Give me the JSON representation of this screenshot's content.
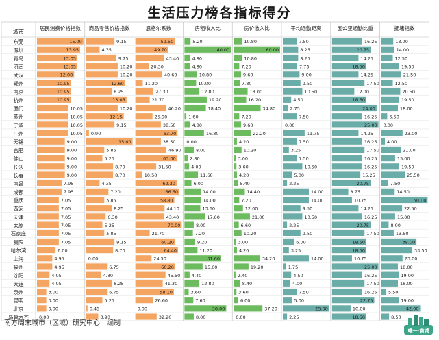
{
  "page": {
    "title": "生活压力榜各指标得分",
    "source": "南方周末城市（区域）研究中心　编制",
    "logo_text": "唯一·南城"
  },
  "chart_data": {
    "type": "table",
    "title": "生活压力榜各指标得分",
    "row_header": "城市",
    "columns": [
      {
        "name": "居民消费价格指数",
        "color": "#f4a561",
        "max": 15
      },
      {
        "name": "商品零售价格指数",
        "color": "#f4a561",
        "max": 15
      },
      {
        "name": "恩格尔系数",
        "color": "#f4a561",
        "max": 70
      },
      {
        "name": "房租收入比",
        "color": "#6cbb5e",
        "max": 40
      },
      {
        "name": "房价收入比",
        "color": "#6cbb5e",
        "max": 60
      },
      {
        "name": "平均通勤距离",
        "color": "#6aada8",
        "max": 25
      },
      {
        "name": "五公里通勤比重",
        "color": "#6aada8",
        "max": 25
      },
      {
        "name": "拥堵指数",
        "color": "#6aada8",
        "max": 50
      }
    ],
    "rows": [
      {
        "city": "东莞",
        "values": [
          "15.00",
          "9.15",
          "59.50",
          "5.20",
          "10.80",
          "7.50",
          "16.25",
          "13.00"
        ]
      },
      {
        "city": "深圳",
        "values": [
          "13.95",
          "4.35",
          "49.70",
          "40.00",
          "60.00",
          "8.25",
          "20.75",
          "14.00"
        ]
      },
      {
        "city": "青岛",
        "values": [
          "13.05",
          "9.75",
          "43.40",
          "4.80",
          "10.80",
          "8.25",
          "14.25",
          "12.50"
        ]
      },
      {
        "city": "济南",
        "values": [
          "13.05",
          "10.20",
          "20.30",
          "4.80",
          "7.20",
          "7.75",
          "18.50",
          "19.50"
        ]
      },
      {
        "city": "武汉",
        "values": [
          "12.00",
          "10.20",
          "40.60",
          "10.80",
          "9.60",
          "9.00",
          "14.25",
          "21.50"
        ]
      },
      {
        "city": "郑州",
        "values": [
          "10.95",
          "12.60",
          "11.20",
          "10.00",
          "7.80",
          "9.50",
          "17.50",
          "12.50"
        ]
      },
      {
        "city": "南京",
        "values": [
          "10.95",
          "8.25",
          "27.30",
          "12.80",
          "18.00",
          "10.50",
          "12.00",
          "20.50"
        ]
      },
      {
        "city": "杭州",
        "values": [
          "10.95",
          "13.05",
          "21.70",
          "19.20",
          "16.20",
          "4.50",
          "18.50",
          "19.50"
        ]
      },
      {
        "city": "厦门",
        "values": [
          "10.05",
          "10.20",
          "46.20",
          "18.40",
          "34.80",
          "2.75",
          "24.00",
          "18.00"
        ]
      },
      {
        "city": "苏州",
        "values": [
          "10.05",
          "12.15",
          "25.90",
          "1.60",
          "7.20",
          "7.50",
          "16.25",
          "6.50"
        ]
      },
      {
        "city": "宁波",
        "values": [
          "10.05",
          "9.15",
          "38.50",
          "4.80",
          "9.60",
          "0.00",
          "25.00",
          "0.00"
        ]
      },
      {
        "city": "广州",
        "values": [
          "10.05",
          "0.90",
          "63.70",
          "16.80",
          "22.20",
          "11.75",
          "14.25",
          "23.00"
        ]
      },
      {
        "city": "无锡",
        "values": [
          "9.00",
          "15.00",
          "38.50",
          "0.00",
          "4.20",
          "7.50",
          "16.25",
          "4.00"
        ]
      },
      {
        "city": "合肥",
        "values": [
          "9.00",
          "5.85",
          "46.90",
          "8.00",
          "10.20",
          "3.25",
          "17.50",
          "21.00"
        ]
      },
      {
        "city": "佛山",
        "values": [
          "9.00",
          "5.25",
          "63.00",
          "2.80",
          "3.00",
          "7.50",
          "16.25",
          "15.00"
        ]
      },
      {
        "city": "长沙",
        "values": [
          "9.00",
          "8.70",
          "31.50",
          "4.00",
          "3.60",
          "10.50",
          "16.25",
          "19.50"
        ]
      },
      {
        "city": "长春",
        "values": [
          "9.00",
          "8.70",
          "10.50",
          "11.60",
          "4.20",
          "5.00",
          "15.25",
          "25.50"
        ]
      },
      {
        "city": "南昌",
        "values": [
          "7.95",
          "4.35",
          "62.30",
          "6.00",
          "5.40",
          "2.25",
          "20.75",
          "7.50"
        ]
      },
      {
        "city": "成都",
        "values": [
          "7.95",
          "7.20",
          "66.50",
          "14.00",
          "14.40",
          "14.00",
          "8.75",
          "14.50"
        ]
      },
      {
        "city": "重庆",
        "values": [
          "7.05",
          "5.85",
          "58.80",
          "14.00",
          "7.20",
          "14.00",
          "10.75",
          "50.00"
        ]
      },
      {
        "city": "西安",
        "values": [
          "7.05",
          "8.25",
          "44.10",
          "13.60",
          "12.00",
          "9.50",
          "14.25",
          "22.50"
        ]
      },
      {
        "city": "天津",
        "values": [
          "7.05",
          "6.30",
          "43.40",
          "17.60",
          "21.00",
          "10.50",
          "16.25",
          "15.00"
        ]
      },
      {
        "city": "太原",
        "values": [
          "7.05",
          "5.25",
          "70.00",
          "8.00",
          "6.60",
          "2.25",
          "20.75",
          "8.00"
        ]
      },
      {
        "city": "石家庄",
        "values": [
          "7.05",
          "5.85",
          "21.70",
          "7.20",
          "10.20",
          "9.50",
          "17.50",
          "13.50"
        ]
      },
      {
        "city": "贵阳",
        "values": [
          "7.05",
          "9.15",
          "60.20",
          "9.20",
          "3.00",
          "6.00",
          "18.50",
          "38.00"
        ]
      },
      {
        "city": "哈尔滨",
        "values": [
          "6.00",
          "8.70",
          "64.40",
          "11.20",
          "4.20",
          "3.25",
          "18.50",
          "33.50"
        ]
      },
      {
        "city": "上海",
        "values": [
          "4.95",
          "0.00",
          "24.50",
          "31.60",
          "34.20",
          "14.00",
          "10.75",
          "23.00"
        ]
      },
      {
        "city": "福州",
        "values": [
          "4.95",
          "6.75",
          "60.20",
          "15.60",
          "19.20",
          "1.75",
          "25.00",
          "18.00"
        ]
      },
      {
        "city": "沈阳",
        "values": [
          "4.05",
          "4.80",
          "45.50",
          "4.40",
          "2.40",
          "4.50",
          "16.25",
          "19.00"
        ]
      },
      {
        "city": "大连",
        "values": [
          "4.05",
          "8.25",
          "41.30",
          "12.80",
          "8.40",
          "4.00",
          "17.50",
          "18.00"
        ]
      },
      {
        "city": "泉州",
        "values": [
          "3.00",
          "6.75",
          "58.10",
          "3.60",
          "3.60",
          "7.50",
          "16.25",
          "5.50"
        ]
      },
      {
        "city": "昆明",
        "values": [
          "3.00",
          "5.25",
          "26.60",
          "7.60",
          "6.00",
          "5.00",
          "22.75",
          "19.00"
        ]
      },
      {
        "city": "北京",
        "values": [
          "3.00",
          "0.45",
          "0.00",
          "36.00",
          "37.20",
          "25.00",
          "10.00",
          "42.00"
        ]
      },
      {
        "city": "乌鲁木齐",
        "values": [
          "0.00",
          "3.90",
          "32.20",
          "8.00",
          "0.00",
          "2.25",
          "18.50",
          "8.50"
        ]
      }
    ]
  }
}
